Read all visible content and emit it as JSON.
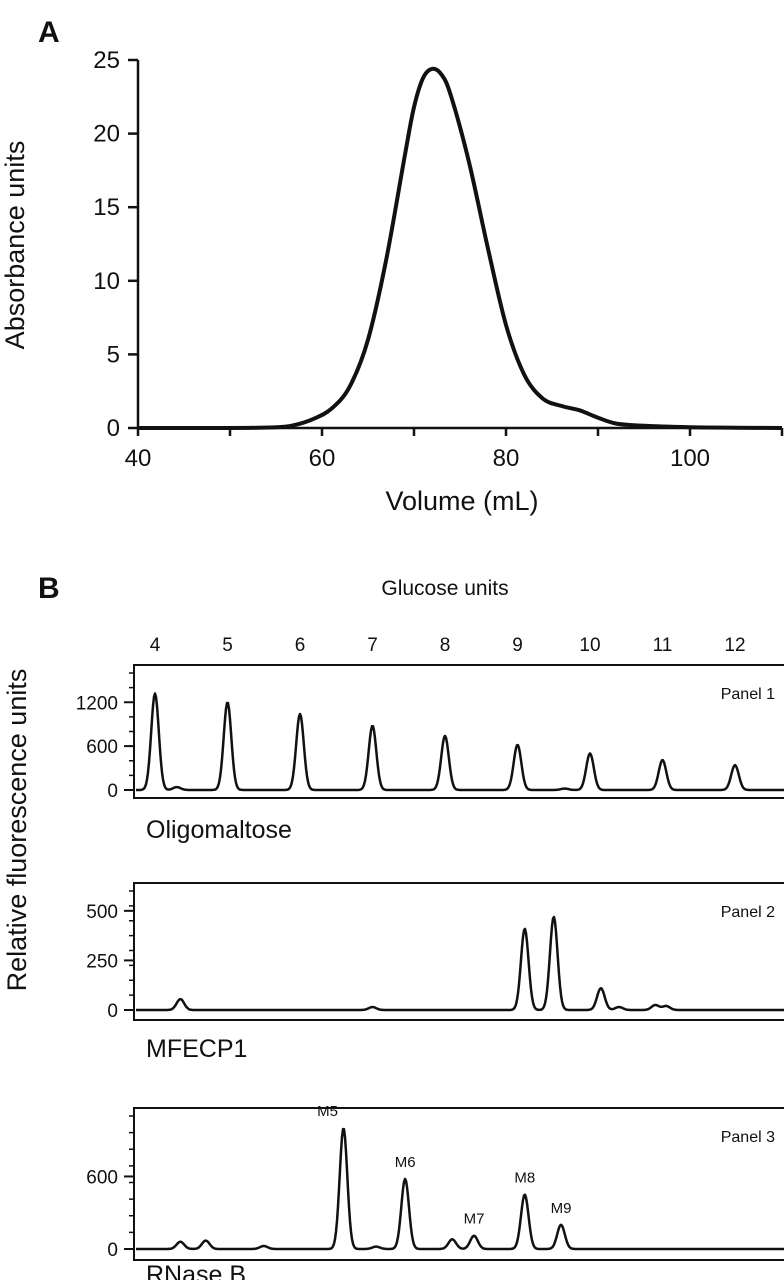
{
  "chart_data": [
    {
      "panel_label": "A",
      "type": "line",
      "xlabel": "Volume (mL)",
      "ylabel": "Absorbance units",
      "xlim": [
        40,
        110
      ],
      "ylim": [
        0,
        25
      ],
      "xticks": [
        40,
        60,
        80,
        100
      ],
      "yticks": [
        0,
        5,
        10,
        15,
        20,
        25
      ],
      "grid": false,
      "series": [
        {
          "x": [
            40,
            50,
            55,
            57,
            59,
            61,
            63,
            65,
            67,
            69,
            70,
            71,
            72,
            73,
            74,
            76,
            78,
            80,
            82,
            84,
            86,
            88,
            90,
            92,
            95,
            100,
            105,
            110
          ],
          "y": [
            0,
            0,
            0.05,
            0.2,
            0.6,
            1.3,
            2.8,
            6.0,
            11.5,
            18.5,
            21.8,
            23.8,
            24.4,
            24.0,
            22.6,
            18.0,
            12.3,
            7.0,
            3.6,
            2.0,
            1.5,
            1.2,
            0.7,
            0.3,
            0.15,
            0.05,
            0.02,
            0
          ]
        }
      ]
    },
    {
      "panel_label": "B",
      "type": "line",
      "top_axis_title": "Glucose units",
      "top_axis_ticks": [
        "4",
        "5",
        "6",
        "7",
        "8",
        "9",
        "10",
        "11",
        "12"
      ],
      "ylabel": "Relative fluorescence units",
      "panels": [
        {
          "title": "Panel 1",
          "sample": "Oligomaltose",
          "ylim": [
            0,
            1600
          ],
          "yticks": [
            0,
            600,
            1200
          ],
          "peaks": [
            {
              "gu": 4.0,
              "value": 1320
            },
            {
              "gu": 4.3,
              "value": 40
            },
            {
              "gu": 5.0,
              "value": 1200
            },
            {
              "gu": 6.0,
              "value": 1040
            },
            {
              "gu": 7.0,
              "value": 880
            },
            {
              "gu": 8.0,
              "value": 740
            },
            {
              "gu": 9.0,
              "value": 620
            },
            {
              "gu": 9.65,
              "value": 20
            },
            {
              "gu": 10.0,
              "value": 500
            },
            {
              "gu": 11.0,
              "value": 410
            },
            {
              "gu": 12.0,
              "value": 340
            }
          ]
        },
        {
          "title": "Panel 2",
          "sample": "MFECP1",
          "ylim": [
            0,
            600
          ],
          "yticks": [
            0,
            250,
            500
          ],
          "peaks": [
            {
              "gu": 4.35,
              "value": 55
            },
            {
              "gu": 7.0,
              "value": 15
            },
            {
              "gu": 9.1,
              "value": 410
            },
            {
              "gu": 9.5,
              "value": 470
            },
            {
              "gu": 10.15,
              "value": 110
            },
            {
              "gu": 10.4,
              "value": 15
            },
            {
              "gu": 10.9,
              "value": 25
            },
            {
              "gu": 11.05,
              "value": 20
            }
          ]
        },
        {
          "title": "Panel 3",
          "sample": "RNase B",
          "ylim": [
            0,
            1100
          ],
          "yticks": [
            0,
            600
          ],
          "peaks": [
            {
              "gu": 4.35,
              "value": 60
            },
            {
              "gu": 4.7,
              "value": 70
            },
            {
              "gu": 5.5,
              "value": 25
            },
            {
              "gu": 6.6,
              "value": 1000,
              "label": "M5"
            },
            {
              "gu": 7.05,
              "value": 20
            },
            {
              "gu": 7.45,
              "value": 580,
              "label": "M6"
            },
            {
              "gu": 8.1,
              "value": 80
            },
            {
              "gu": 8.4,
              "value": 110,
              "label": "M7"
            },
            {
              "gu": 9.1,
              "value": 450,
              "label": "M8"
            },
            {
              "gu": 9.6,
              "value": 200,
              "label": "M9"
            }
          ]
        }
      ]
    }
  ]
}
